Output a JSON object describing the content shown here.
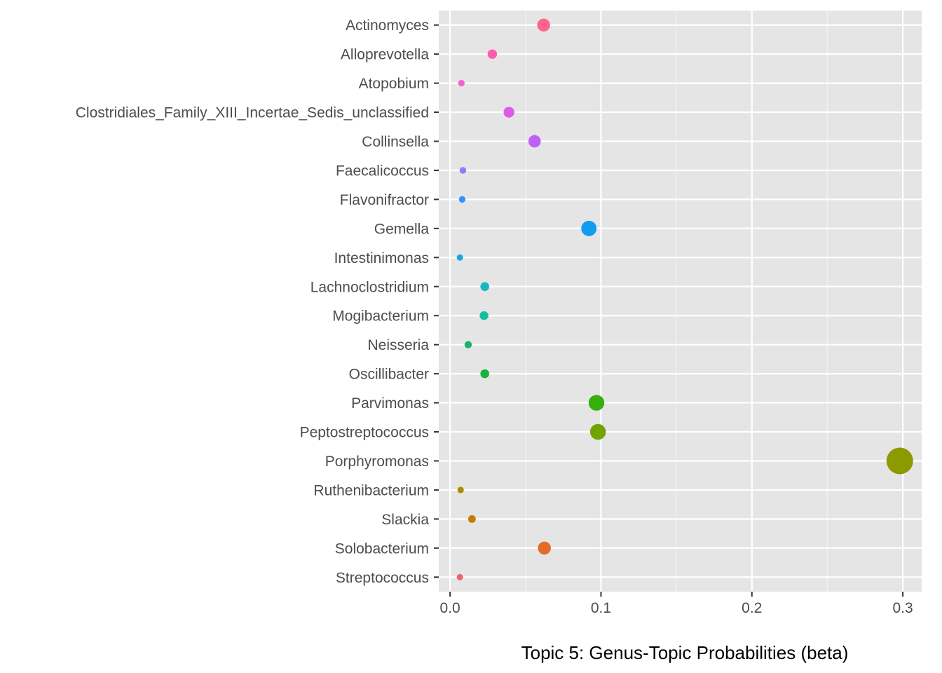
{
  "chart_data": {
    "type": "scatter",
    "title": "",
    "xlabel": "Topic 5: Genus-Topic Probabilities (beta)",
    "ylabel": "",
    "xlim": [
      -0.0075,
      0.3125
    ],
    "xticks": [
      0.0,
      0.1,
      0.2,
      0.3
    ],
    "xtick_labels": [
      "0.0",
      "0.1",
      "0.2",
      "0.3"
    ],
    "grid": true,
    "legend": "none",
    "categories": [
      "Actinomyces",
      "Alloprevotella",
      "Atopobium",
      "Clostridiales_Family_XIII_Incertae_Sedis_unclassified",
      "Collinsella",
      "Faecalicoccus",
      "Flavonifractor",
      "Gemella",
      "Intestinimonas",
      "Lachnoclostridium",
      "Mogibacterium",
      "Neisseria",
      "Oscillibacter",
      "Parvimonas",
      "Peptostreptococcus",
      "Porphyromonas",
      "Ruthenibacterium",
      "Slackia",
      "Solobacterium",
      "Streptococcus"
    ],
    "values": [
      0.062,
      0.028,
      0.0075,
      0.039,
      0.056,
      0.0085,
      0.008,
      0.092,
      0.0065,
      0.023,
      0.0225,
      0.012,
      0.023,
      0.097,
      0.098,
      0.298,
      0.007,
      0.0145,
      0.0625,
      0.0065
    ],
    "colors": [
      "#FF6489",
      "#FF5BB2",
      "#F65ED2",
      "#E05AE8",
      "#BD62F5",
      "#8F7CF7",
      "#3591FF",
      "#119CF0",
      "#17A8DC",
      "#1AB5C3",
      "#17BC9E",
      "#16B46F",
      "#19B23E",
      "#35AF0C",
      "#72A400",
      "#8C9A00",
      "#AD8B00",
      "#C77C00",
      "#E36C28",
      "#EF6466"
    ]
  }
}
